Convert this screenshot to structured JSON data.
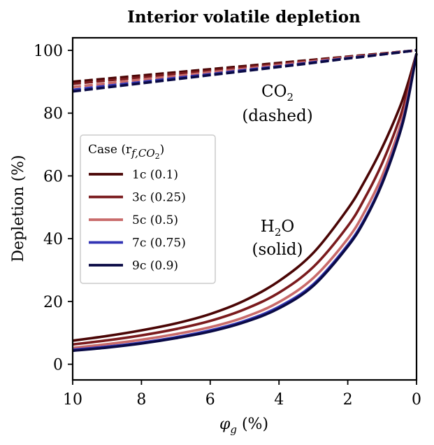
{
  "chart_data": {
    "type": "line",
    "title": "Interior volatile depletion",
    "xlabel": {
      "symbol": "φ",
      "sub": "g",
      "unit": " (%)"
    },
    "ylabel": "Depletion (%)",
    "xlim": [
      10,
      0
    ],
    "ylim": [
      -5,
      104
    ],
    "x_axis_reversed": true,
    "xticks": [
      "10",
      "8",
      "6",
      "4",
      "2",
      "0"
    ],
    "yticks": [
      "0",
      "20",
      "40",
      "60",
      "80",
      "100"
    ],
    "xtick_values": [
      10,
      8,
      6,
      4,
      2,
      0
    ],
    "ytick_values": [
      0,
      20,
      40,
      60,
      80,
      100
    ],
    "grid": false,
    "legend": {
      "placement": "center-left",
      "title_prefix": "Case (r",
      "title_sub": "f,CO",
      "title_sub2": "2",
      "title_suffix": ")"
    },
    "annotations": {
      "co2": {
        "line1_main": "CO",
        "line1_sub": "2",
        "line2": "(dashed)"
      },
      "h2o": {
        "line1_pre": "H",
        "line1_sub": "2",
        "line1_post": "O",
        "line2": "(solid)"
      }
    },
    "x": [
      10,
      9,
      8,
      7,
      6,
      5,
      4,
      3,
      2,
      1.5,
      1,
      0.5,
      0.25,
      0
    ],
    "series": [
      {
        "name": "1c (0.1)",
        "color": "#4a0505",
        "h2o": [
          7.5,
          9.0,
          10.8,
          13.0,
          16.0,
          20.3,
          26.5,
          35.5,
          49.5,
          58.5,
          69.0,
          81.5,
          89.5,
          99.0
        ],
        "co2": [
          90.0,
          91.0,
          92.0,
          93.0,
          94.0,
          95.0,
          96.0,
          97.0,
          98.0,
          98.5,
          99.0,
          99.5,
          99.75,
          100.0
        ]
      },
      {
        "name": "3c (0.25)",
        "color": "#7a1a1d",
        "h2o": [
          6.3,
          7.6,
          9.2,
          11.2,
          13.8,
          17.5,
          22.8,
          31.0,
          44.0,
          53.0,
          64.0,
          78.0,
          87.5,
          99.0
        ],
        "co2": [
          89.3,
          90.4,
          91.4,
          92.5,
          93.5,
          94.6,
          95.7,
          96.8,
          97.9,
          98.4,
          98.9,
          99.5,
          99.7,
          100.0
        ]
      },
      {
        "name": "5c (0.5)",
        "color": "#c86a6a",
        "h2o": [
          5.2,
          6.4,
          7.8,
          9.6,
          11.8,
          15.0,
          19.8,
          27.5,
          40.0,
          48.8,
          60.0,
          75.0,
          85.5,
          99.0
        ],
        "co2": [
          88.3,
          89.5,
          90.7,
          91.8,
          93.0,
          94.1,
          95.3,
          96.5,
          97.7,
          98.2,
          98.8,
          99.4,
          99.7,
          100.0
        ]
      },
      {
        "name": "7c (0.75)",
        "color": "#3234b4",
        "h2o": [
          4.6,
          5.6,
          6.9,
          8.6,
          10.8,
          13.8,
          18.3,
          25.5,
          38.0,
          46.5,
          58.0,
          73.5,
          84.5,
          99.0
        ],
        "co2": [
          87.4,
          88.7,
          89.9,
          91.2,
          92.4,
          93.7,
          94.9,
          96.2,
          97.5,
          98.1,
          98.7,
          99.4,
          99.7,
          100.0
        ]
      },
      {
        "name": "9c (0.9)",
        "color": "#0a0a45",
        "h2o": [
          4.3,
          5.3,
          6.6,
          8.3,
          10.4,
          13.4,
          17.8,
          25.0,
          37.5,
          46.0,
          57.5,
          73.0,
          84.0,
          99.0
        ],
        "co2": [
          86.9,
          88.2,
          89.5,
          90.8,
          92.1,
          93.4,
          94.7,
          96.0,
          97.4,
          98.0,
          98.7,
          99.3,
          99.7,
          100.0
        ]
      }
    ]
  }
}
